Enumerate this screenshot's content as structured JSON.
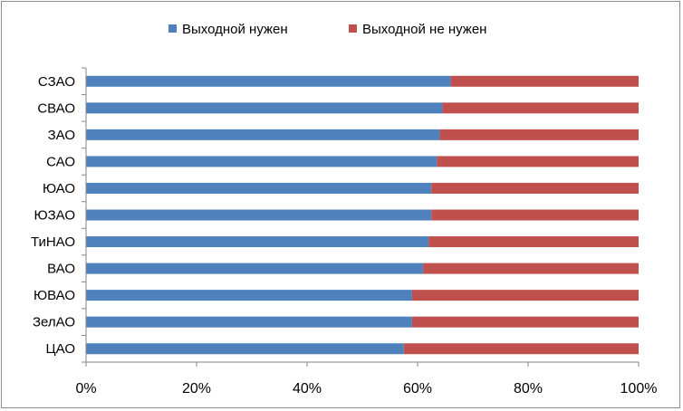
{
  "chart_data": {
    "type": "bar",
    "orientation": "horizontal",
    "stacked": "100%",
    "title": "",
    "xlabel": "",
    "ylabel": "",
    "categories": [
      "СЗАО",
      "СВАО",
      "ЗАО",
      "САО",
      "ЮАО",
      "ЮЗАО",
      "ТиНАО",
      "ВАО",
      "ЮВАО",
      "ЗелАО",
      "ЦАО"
    ],
    "series": [
      {
        "name": "Выходной нужен",
        "color": "#4f81bd",
        "values": [
          66,
          64.5,
          64,
          63.5,
          62.5,
          62.5,
          62,
          61,
          59,
          59,
          57.5
        ]
      },
      {
        "name": "Выходной не нужен",
        "color": "#c0504d",
        "values": [
          34,
          35.5,
          36,
          36.5,
          37.5,
          37.5,
          38,
          39,
          41,
          41,
          42.5
        ]
      }
    ],
    "xlim": [
      0,
      100
    ],
    "x_ticks": [
      "0%",
      "20%",
      "40%",
      "60%",
      "80%",
      "100%"
    ],
    "grid": false,
    "legend_position": "top"
  }
}
